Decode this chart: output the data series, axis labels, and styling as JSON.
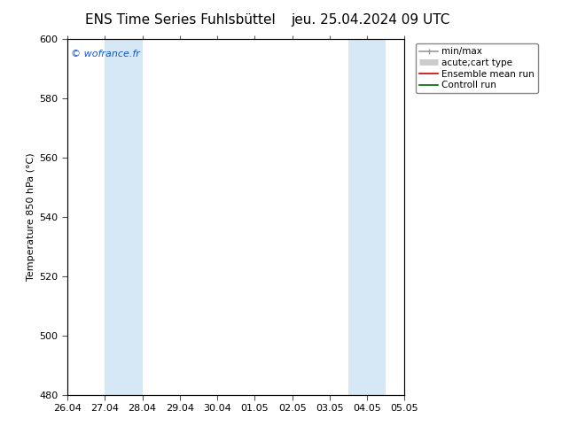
{
  "title_left": "ENS Time Series Fuhlsbüttel",
  "title_right": "jeu. 25.04.2024 09 UTC",
  "ylabel": "Temperature 850 hPa (°C)",
  "watermark": "© wofrance.fr",
  "ylim": [
    480,
    600
  ],
  "yticks": [
    480,
    500,
    520,
    540,
    560,
    580,
    600
  ],
  "xtick_labels": [
    "26.04",
    "27.04",
    "28.04",
    "29.04",
    "30.04",
    "01.05",
    "02.05",
    "03.05",
    "04.05",
    "05.05"
  ],
  "background_color": "#ffffff",
  "plot_bg_color": "#ffffff",
  "shaded_band_color": "#d6e8f5",
  "shaded_ranges": [
    [
      1.0,
      1.5
    ],
    [
      1.5,
      2.0
    ],
    [
      7.5,
      8.0
    ],
    [
      8.0,
      8.5
    ]
  ],
  "legend_entries": [
    {
      "label": "min/max",
      "color": "#999999",
      "linewidth": 1.2
    },
    {
      "label": "acute;cart type",
      "color": "#cccccc",
      "linewidth": 5
    },
    {
      "label": "Ensemble mean run",
      "color": "#cc0000",
      "linewidth": 1.2
    },
    {
      "label": "Controll run",
      "color": "#006600",
      "linewidth": 1.2
    }
  ],
  "title_fontsize": 11,
  "ylabel_fontsize": 8,
  "tick_fontsize": 8,
  "watermark_fontsize": 8,
  "legend_fontsize": 7.5
}
